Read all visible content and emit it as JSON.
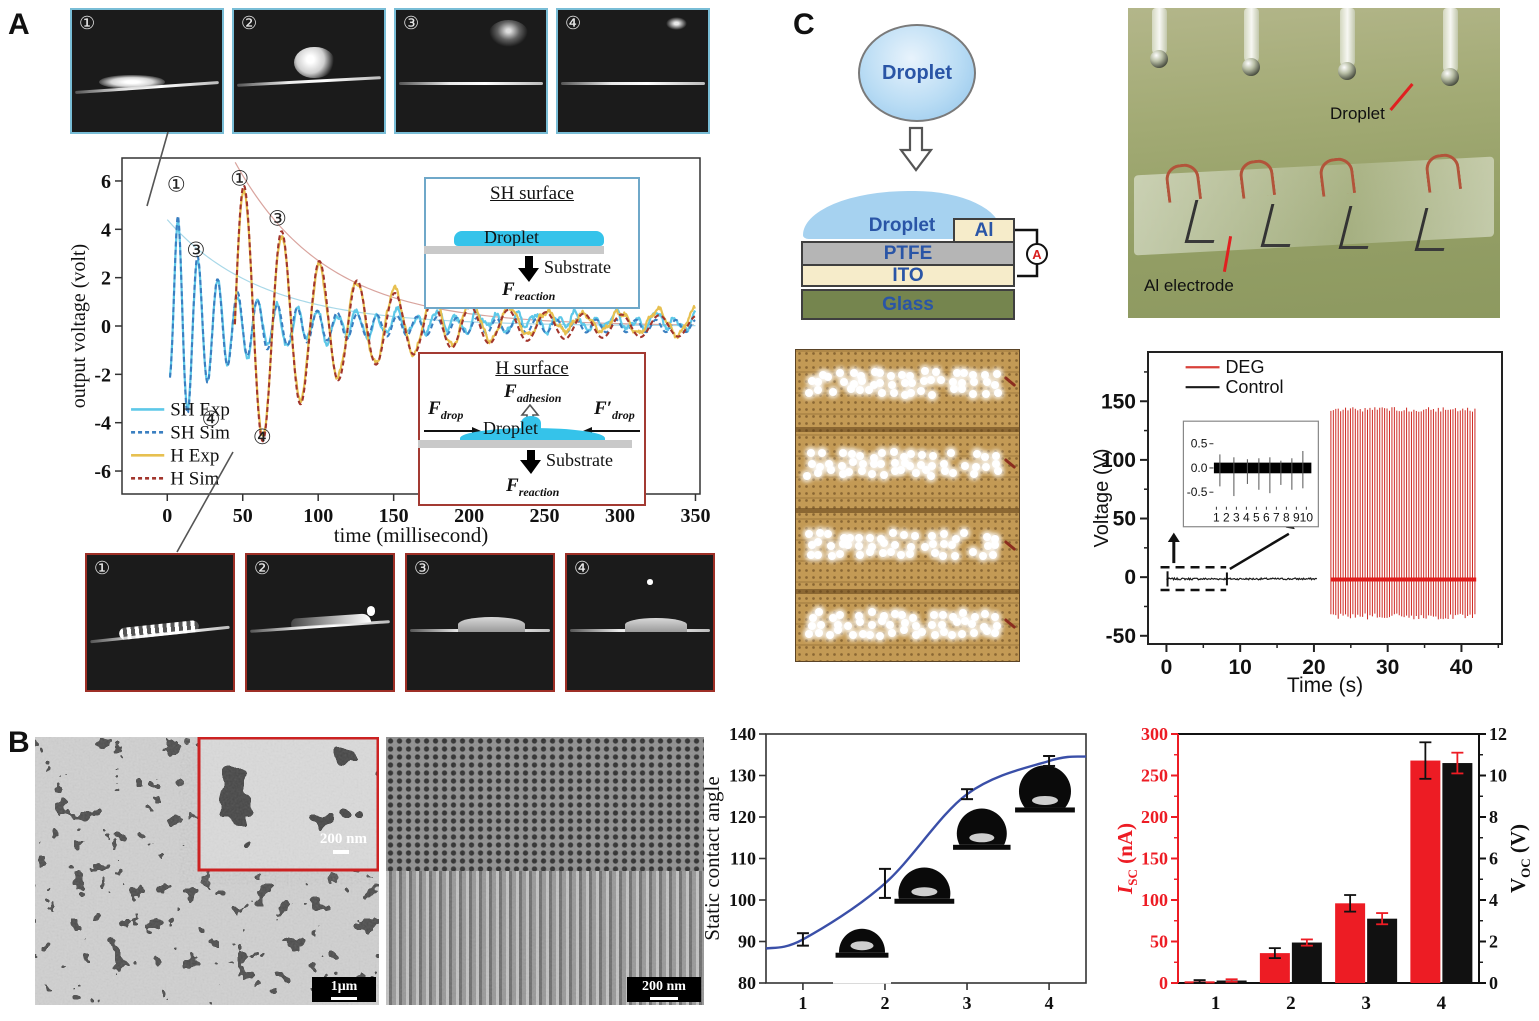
{
  "panel_a": {
    "label": "A",
    "top_frames": {
      "numbers": [
        "①",
        "②",
        "③",
        "④"
      ]
    },
    "bottom_frames": {
      "numbers": [
        "①",
        "②",
        "③",
        "④"
      ]
    },
    "sh_inset": {
      "title": "SH surface",
      "droplet_label": "Droplet",
      "substrate_label": "Substrate",
      "force_base": "F",
      "force_sub": "reaction"
    },
    "h_inset": {
      "title": "H surface",
      "droplet_label": "Droplet",
      "substrate_label": "Substrate",
      "adhesion_base": "F",
      "adhesion_sub": "adhesion",
      "drop_left_base": "F",
      "drop_left_sub": "drop",
      "drop_right_base": "F′",
      "drop_right_sub": "drop",
      "reaction_base": "F",
      "reaction_sub": "reaction"
    }
  },
  "panel_b": {
    "label": "B",
    "sem1_inset_scale": "200 nm",
    "sem1_scale": "1μm",
    "sem2_scale": "200 nm"
  },
  "panel_c": {
    "label": "C",
    "droplet_bubble": "Droplet",
    "schematic": {
      "droplet": "Droplet",
      "al": "Al",
      "ptfe": "PTFE",
      "ito": "ITO",
      "glass": "Glass",
      "ammeter": "A"
    },
    "photo_labels": {
      "droplet": "Droplet",
      "electrode": "Al electrode"
    }
  },
  "chart_data": [
    {
      "id": "oscillation",
      "type": "line",
      "xlabel": "time (millisecond)",
      "ylabel": "output voltage (volt)",
      "xticks": [
        0,
        50,
        100,
        150,
        200,
        250,
        300,
        350
      ],
      "yticks": [
        6,
        4,
        2,
        0,
        -2,
        -4,
        -6
      ],
      "xlim": [
        -30,
        353
      ],
      "ylim": [
        -6.95,
        6.95
      ],
      "legend": [
        {
          "label": "SH Exp",
          "color": "#5ec8e8",
          "dash": false
        },
        {
          "label": "SH Sim",
          "color": "#3a7fc1",
          "dash": true
        },
        {
          "label": "H Exp",
          "color": "#e7c050",
          "dash": false
        },
        {
          "label": "H Sim",
          "color": "#a2352c",
          "dash": true
        }
      ],
      "series": [
        {
          "name": "SH",
          "start": 1.8,
          "amp_t0": 0,
          "period": 13.2,
          "phase_t0": 3.7,
          "amp": [
            [
              4.3,
              19
            ],
            [
              1.55,
              70
            ]
          ],
          "floor": 0.24,
          "ramp_until": 7,
          "peak_times": [
            7,
            20,
            33
          ],
          "peak_values": [
            5.0,
            2.55,
            1.85
          ]
        },
        {
          "name": "H",
          "start": 44.8,
          "amp_t0": 45,
          "period": 25,
          "phase_t0": 44.75,
          "amp": [
            [
              6.0,
              58
            ]
          ],
          "floor": 0.4,
          "ramp_until": 0,
          "peak_times": [
            51,
            76,
            101
          ],
          "peak_values": [
            5.3,
            3.9,
            2.6
          ]
        }
      ],
      "envelopes": [
        {
          "color": "#d9a49e",
          "a": 7.0,
          "tau": 60,
          "t0": 43
        },
        {
          "color": "#a8d8e8",
          "a": 4.4,
          "tau": 62,
          "t0": 0
        }
      ],
      "annotations": [
        {
          "glyph": "①",
          "t": 6,
          "v": 5.85
        },
        {
          "glyph": "③",
          "t": 19,
          "v": 3.15
        },
        {
          "glyph": "④",
          "t": 29,
          "v": -3.85
        },
        {
          "glyph": "①",
          "t": 48,
          "v": 6.1
        },
        {
          "glyph": "③",
          "t": 73,
          "v": 4.45
        },
        {
          "glyph": "④",
          "t": 63,
          "v": -4.6
        }
      ]
    },
    {
      "id": "deg_output",
      "type": "line",
      "xlabel": "Time (s)",
      "ylabel": "Voltage (V)",
      "xticks": [
        0,
        10,
        20,
        30,
        40
      ],
      "yticks": [
        -50,
        0,
        50,
        100,
        150
      ],
      "xlim": [
        -2.5,
        45.5
      ],
      "ylim": [
        -57,
        192
      ],
      "legend": [
        {
          "label": "DEG",
          "color": "#d8413a"
        },
        {
          "label": "Control",
          "color": "#1a1a1a"
        }
      ],
      "control": {
        "t_range": [
          0,
          20.5
        ],
        "baseline": -1.5
      },
      "deg": {
        "t_range": [
          22.3,
          42
        ],
        "spike_interval": 0.331,
        "spike_top": 143,
        "spike_bottom": -36,
        "baseline": -2
      },
      "inset": {
        "xticks": [
          1,
          2,
          3,
          4,
          5,
          6,
          7,
          8,
          9,
          10
        ],
        "yticks": [
          "0.5",
          "0.0",
          "-0.5"
        ],
        "band": 0.11,
        "spike_x": [
          1.35,
          2.75,
          4.1,
          5.25,
          6.35,
          7.45,
          8.55,
          9.65
        ],
        "spike_down": [
          -0.38,
          -0.58,
          -0.33,
          -0.45,
          -0.52,
          -0.35,
          -0.45,
          -0.42
        ],
        "spike_up": [
          0.28,
          0.22,
          0.18,
          0.2,
          0.22,
          0.15,
          0.2,
          0.35
        ]
      }
    },
    {
      "id": "contact_angle",
      "type": "scatter",
      "ylabel": "Static contact angle",
      "x": [
        1,
        2,
        3,
        4
      ],
      "y": [
        90.5,
        104,
        125.5,
        133.5
      ],
      "yerr": [
        1.5,
        3.5,
        1.2,
        1.2
      ],
      "ylim": [
        80,
        140
      ],
      "yticks": [
        80,
        90,
        100,
        110,
        120,
        130,
        140
      ],
      "xticks": [
        1,
        2,
        3,
        4
      ],
      "curve_color": "#3a4fa8"
    },
    {
      "id": "isc_voc",
      "type": "bar",
      "categories": [
        "1",
        "2",
        "3",
        "4"
      ],
      "left_label": {
        "base": "I",
        "sub": "SC",
        "unit": " (nA)"
      },
      "right_label": {
        "base": "V",
        "sub": "OC",
        "unit": " (V)"
      },
      "left_lim": [
        0,
        300
      ],
      "left_ticks": [
        0,
        50,
        100,
        150,
        200,
        250,
        300
      ],
      "right_lim": [
        0,
        12
      ],
      "right_ticks": [
        0,
        2,
        4,
        6,
        8,
        10,
        12
      ],
      "series": [
        {
          "name": "ISC",
          "color": "#ed1c24",
          "axis": "left",
          "values": [
            2,
            36,
            96,
            268
          ],
          "err": [
            1.5,
            6,
            10,
            22
          ],
          "err_color": "#111111"
        },
        {
          "name": "VOC",
          "color": "#111111",
          "axis": "right",
          "values": [
            0.12,
            1.95,
            3.1,
            10.6
          ],
          "err": [
            0.06,
            0.15,
            0.27,
            0.5
          ],
          "err_color": "#ed1c24"
        }
      ]
    }
  ]
}
